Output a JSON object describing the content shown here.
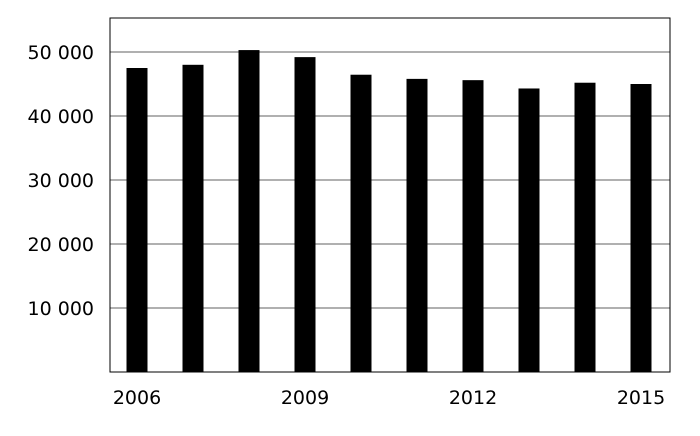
{
  "chart_data": {
    "type": "bar",
    "title": "",
    "xlabel": "",
    "ylabel": "",
    "categories": [
      "2006",
      "2007",
      "2008",
      "2009",
      "2010",
      "2011",
      "2012",
      "2013",
      "2014",
      "2015"
    ],
    "values": [
      47500,
      48000,
      50300,
      49200,
      46450,
      45800,
      45600,
      44300,
      45200,
      45000
    ],
    "x_tick_labels": [
      "2006",
      "2009",
      "2012",
      "2015"
    ],
    "y_tick_labels": [
      "10 000",
      "20 000",
      "30 000",
      "40 000",
      "50 000"
    ],
    "y_ticks": [
      10000,
      20000,
      30000,
      40000,
      50000
    ],
    "ylim": [
      0,
      55000
    ],
    "grid": "horizontal",
    "legend": "none",
    "bar_color": "#000000",
    "grid_color": "#808080"
  }
}
